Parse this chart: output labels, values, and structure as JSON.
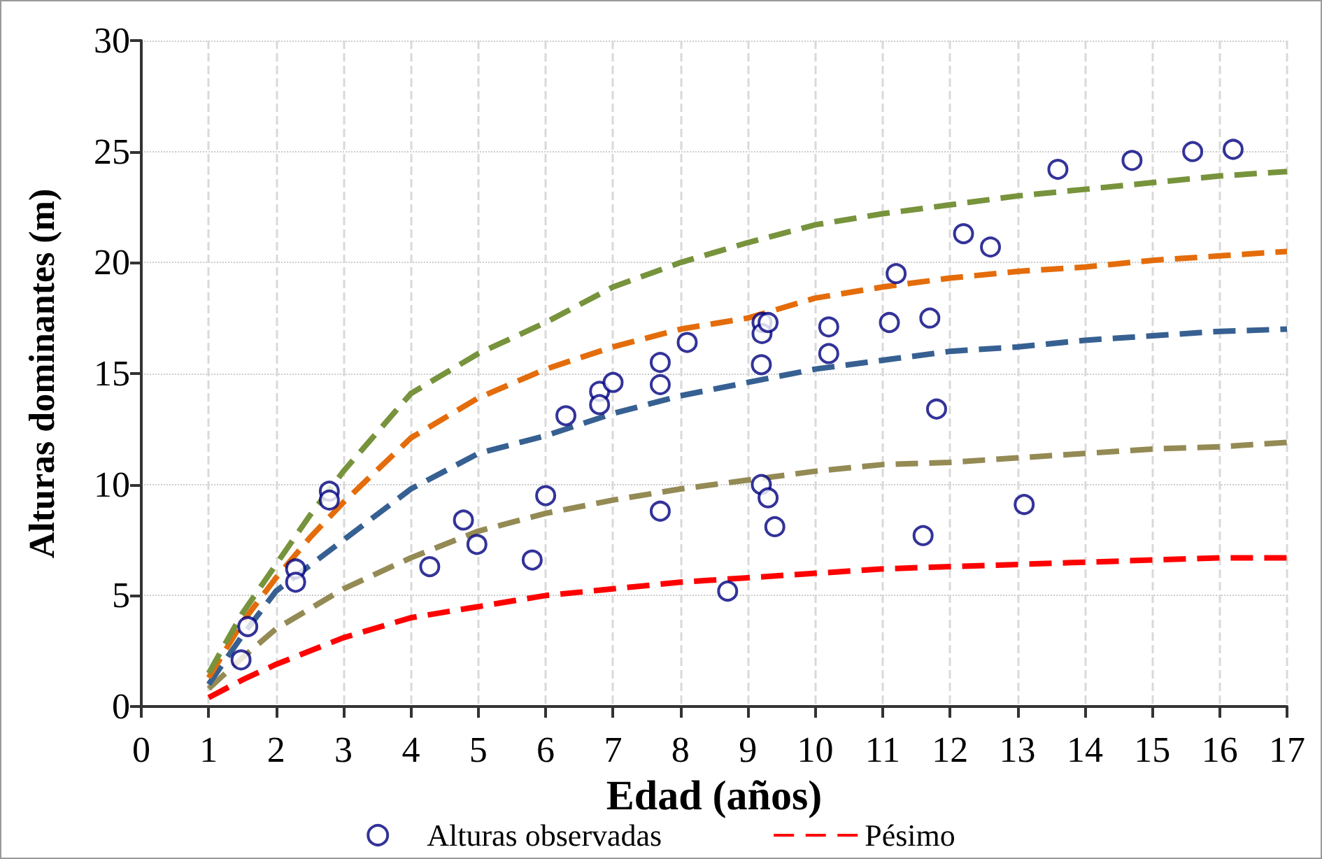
{
  "chart_data": {
    "type": "line",
    "xlabel": "Edad (años)",
    "ylabel": "Alturas dominantes (m)",
    "xlim": [
      0,
      17
    ],
    "xticks": [
      0,
      1,
      2,
      3,
      4,
      5,
      6,
      7,
      8,
      9,
      10,
      11,
      12,
      13,
      14,
      15,
      16,
      17
    ],
    "ylim": [
      0,
      30
    ],
    "yticks": [
      0,
      5,
      10,
      15,
      20,
      25,
      30
    ],
    "grid": true,
    "legend": "bottom",
    "marker": "none",
    "line_style": "dashed",
    "series": [
      {
        "name": "Alturas observadas",
        "type": "scatter",
        "marker": "circle",
        "color": "#000080",
        "x": [
          1.48,
          1.58,
          2.29,
          2.29,
          2.79,
          2.79,
          4.28,
          4.78,
          4.98,
          5.8,
          6.0,
          7.7,
          6.3,
          6.8,
          6.8,
          7.0,
          7.7,
          7.7,
          8.1,
          9.21,
          9.21,
          9.3,
          9.2,
          10.2,
          10.2,
          11.1,
          11.2,
          11.7,
          11.8,
          12.2,
          12.6,
          13.6,
          14.7,
          15.6,
          16.2,
          9.2,
          9.3,
          9.4,
          11.6,
          13.1,
          8.7
        ],
        "values": [
          2.1,
          3.6,
          6.2,
          5.6,
          9.7,
          9.3,
          6.3,
          8.4,
          7.3,
          6.6,
          9.5,
          8.8,
          13.1,
          14.2,
          13.6,
          14.6,
          14.5,
          15.5,
          16.4,
          17.3,
          16.8,
          17.3,
          15.4,
          17.1,
          15.9,
          17.3,
          19.5,
          17.5,
          13.4,
          21.3,
          20.7,
          24.2,
          24.6,
          25.0,
          25.1,
          10.0,
          9.4,
          8.1,
          7.7,
          9.1,
          5.2
        ]
      },
      {
        "name": "Pésimo",
        "color": "#ff0000",
        "x": [
          1,
          1.5,
          2,
          3,
          4,
          5,
          6,
          7,
          8,
          9,
          10,
          11,
          12,
          13,
          14,
          15,
          16,
          17
        ],
        "values": [
          0.4,
          1.2,
          1.9,
          3.1,
          4.0,
          4.5,
          5.0,
          5.3,
          5.6,
          5.8,
          6.0,
          6.2,
          6.3,
          6.4,
          6.5,
          6.6,
          6.7,
          6.7
        ]
      },
      {
        "color": "#948a54",
        "x": [
          1,
          1.5,
          2,
          3,
          4,
          5,
          6,
          7,
          8,
          9,
          10,
          11,
          12,
          13,
          14,
          15,
          16,
          17
        ],
        "values": [
          0.8,
          2.2,
          3.5,
          5.3,
          6.7,
          7.9,
          8.7,
          9.3,
          9.8,
          10.2,
          10.6,
          10.9,
          11.0,
          11.2,
          11.4,
          11.6,
          11.7,
          11.9
        ]
      },
      {
        "color": "#376092",
        "x": [
          1,
          1.5,
          2,
          3,
          4,
          5,
          6,
          7,
          8,
          9,
          10,
          11,
          12,
          13,
          14,
          15,
          16,
          17
        ],
        "values": [
          1.0,
          3.2,
          5.2,
          7.5,
          9.8,
          11.4,
          12.2,
          13.2,
          14.0,
          14.6,
          15.2,
          15.6,
          16.0,
          16.2,
          16.5,
          16.7,
          16.9,
          17.0
        ]
      },
      {
        "color": "#e46c0a",
        "x": [
          1,
          1.5,
          2,
          2.5,
          3,
          4,
          5,
          6,
          7,
          8,
          9,
          10,
          11,
          12,
          13,
          14,
          15,
          16,
          17
        ],
        "values": [
          1.3,
          3.8,
          5.8,
          7.6,
          9.2,
          12.1,
          13.9,
          15.2,
          16.2,
          17.0,
          17.5,
          18.4,
          18.9,
          19.3,
          19.6,
          19.8,
          20.1,
          20.3,
          20.5
        ]
      },
      {
        "color": "#77933c",
        "x": [
          1,
          1.5,
          2,
          2.5,
          3,
          4,
          5,
          6,
          7,
          8,
          9,
          10,
          11,
          12,
          13,
          14,
          15,
          16,
          17
        ],
        "values": [
          1.5,
          4.2,
          6.4,
          8.6,
          10.6,
          14.1,
          15.9,
          17.3,
          18.9,
          20.0,
          20.9,
          21.7,
          22.2,
          22.6,
          23.0,
          23.3,
          23.6,
          23.9,
          24.1
        ]
      }
    ]
  }
}
